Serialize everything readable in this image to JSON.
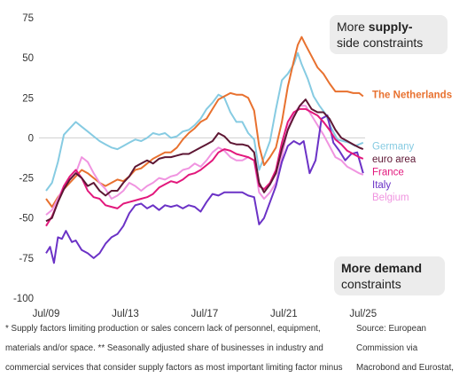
{
  "chart_data": {
    "type": "line",
    "title": "",
    "xlabel": "",
    "ylabel": "",
    "ylim": [
      -100,
      75
    ],
    "yticks": [
      75,
      50,
      25,
      0,
      -25,
      -50,
      -75,
      -100
    ],
    "ytick_labels": [
      "75",
      "50",
      "25",
      "0",
      "-25",
      "-50",
      "-75",
      "-100"
    ],
    "xlim": [
      2009.5,
      2025.6
    ],
    "xticks": [
      2009.5,
      2013.5,
      2017.5,
      2021.5,
      2025.5
    ],
    "xtick_labels": [
      "Jul/09",
      "Jul/13",
      "Jul/17",
      "Jul/21",
      "Jul/25"
    ],
    "grid": false,
    "zero_line": true,
    "series": [
      {
        "name": "Germany",
        "color": "#86cbe2",
        "x": [
          2009.5,
          2009.8,
          2010.1,
          2010.4,
          2010.7,
          2011.0,
          2011.3,
          2011.6,
          2011.9,
          2012.2,
          2012.5,
          2012.8,
          2013.1,
          2013.4,
          2013.7,
          2014.0,
          2014.3,
          2014.6,
          2014.9,
          2015.2,
          2015.5,
          2015.8,
          2016.1,
          2016.4,
          2016.7,
          2017.0,
          2017.3,
          2017.6,
          2017.9,
          2018.2,
          2018.5,
          2018.8,
          2019.1,
          2019.4,
          2019.7,
          2020.0,
          2020.25,
          2020.5,
          2020.8,
          2021.1,
          2021.4,
          2021.7,
          2022.0,
          2022.2,
          2022.4,
          2022.7,
          2023.0,
          2023.3,
          2023.6,
          2023.9,
          2024.2,
          2024.5,
          2024.8,
          2025.1,
          2025.5
        ],
        "values": [
          -33,
          -28,
          -15,
          2,
          6,
          10,
          7,
          4,
          1,
          -2,
          -4,
          -6,
          -7,
          -5,
          -3,
          -1,
          -2,
          0,
          3,
          2,
          3,
          0,
          1,
          4,
          5,
          8,
          12,
          18,
          22,
          27,
          25,
          16,
          10,
          10,
          3,
          -1,
          -20,
          -12,
          -2,
          18,
          36,
          40,
          46,
          53,
          46,
          37,
          26,
          20,
          15,
          6,
          -1,
          -2,
          -3,
          -5,
          -3
        ]
      },
      {
        "name": "The Netherlands",
        "color": "#e8712f",
        "x": [
          2009.5,
          2009.8,
          2010.1,
          2010.4,
          2010.7,
          2011.0,
          2011.3,
          2011.6,
          2011.9,
          2012.2,
          2012.5,
          2012.8,
          2013.1,
          2013.4,
          2013.7,
          2014.0,
          2014.3,
          2014.6,
          2014.9,
          2015.2,
          2015.5,
          2015.8,
          2016.1,
          2016.4,
          2016.7,
          2017.0,
          2017.3,
          2017.6,
          2017.9,
          2018.2,
          2018.5,
          2018.8,
          2019.1,
          2019.4,
          2019.7,
          2020.0,
          2020.25,
          2020.5,
          2020.8,
          2021.1,
          2021.4,
          2021.7,
          2022.0,
          2022.2,
          2022.4,
          2022.6,
          2022.9,
          2023.2,
          2023.5,
          2023.8,
          2024.1,
          2024.4,
          2024.7,
          2025.0,
          2025.3,
          2025.5
        ],
        "values": [
          -38,
          -43,
          -37,
          -32,
          -28,
          -24,
          -20,
          -22,
          -25,
          -28,
          -30,
          -28,
          -26,
          -27,
          -24,
          -20,
          -19,
          -16,
          -13,
          -11,
          -9,
          -9,
          -6,
          -1,
          3,
          6,
          10,
          12,
          18,
          24,
          26,
          28,
          27,
          27,
          25,
          17,
          -5,
          -17,
          -12,
          -6,
          10,
          32,
          48,
          58,
          63,
          58,
          51,
          44,
          40,
          34,
          29,
          29,
          29,
          28,
          28,
          26
        ]
      },
      {
        "name": "euro area",
        "color": "#5e1734",
        "x": [
          2009.5,
          2009.8,
          2010.1,
          2010.4,
          2010.7,
          2011.0,
          2011.3,
          2011.6,
          2011.9,
          2012.2,
          2012.5,
          2012.8,
          2013.1,
          2013.4,
          2013.7,
          2014.0,
          2014.3,
          2014.6,
          2014.9,
          2015.2,
          2015.5,
          2015.8,
          2016.1,
          2016.4,
          2016.7,
          2017.0,
          2017.3,
          2017.6,
          2017.9,
          2018.2,
          2018.5,
          2018.8,
          2019.1,
          2019.4,
          2019.7,
          2020.0,
          2020.25,
          2020.5,
          2020.8,
          2021.1,
          2021.4,
          2021.7,
          2022.0,
          2022.3,
          2022.6,
          2022.9,
          2023.2,
          2023.5,
          2023.8,
          2024.1,
          2024.4,
          2024.7,
          2025.0,
          2025.3,
          2025.5
        ],
        "values": [
          -52,
          -50,
          -40,
          -32,
          -26,
          -22,
          -25,
          -30,
          -28,
          -33,
          -36,
          -33,
          -33,
          -28,
          -24,
          -18,
          -16,
          -14,
          -16,
          -13,
          -12,
          -12,
          -11,
          -10,
          -10,
          -8,
          -6,
          -4,
          -2,
          3,
          1,
          -3,
          -4,
          -4,
          -5,
          -9,
          -28,
          -34,
          -29,
          -22,
          -7,
          5,
          13,
          20,
          24,
          18,
          16,
          16,
          12,
          5,
          0,
          -2,
          -4,
          -6,
          -7
        ]
      },
      {
        "name": "France",
        "color": "#e2187c",
        "x": [
          2009.5,
          2009.8,
          2010.1,
          2010.4,
          2010.7,
          2011.0,
          2011.3,
          2011.6,
          2011.9,
          2012.2,
          2012.5,
          2012.8,
          2013.1,
          2013.4,
          2013.7,
          2014.0,
          2014.3,
          2014.6,
          2014.9,
          2015.2,
          2015.5,
          2015.8,
          2016.1,
          2016.4,
          2016.7,
          2017.0,
          2017.3,
          2017.6,
          2017.9,
          2018.2,
          2018.5,
          2018.8,
          2019.1,
          2019.4,
          2019.7,
          2020.0,
          2020.25,
          2020.5,
          2020.8,
          2021.1,
          2021.4,
          2021.7,
          2022.0,
          2022.3,
          2022.6,
          2022.9,
          2023.2,
          2023.5,
          2023.8,
          2024.1,
          2024.4,
          2024.7,
          2025.0,
          2025.3,
          2025.5
        ],
        "values": [
          -55,
          -49,
          -40,
          -30,
          -24,
          -20,
          -25,
          -33,
          -37,
          -38,
          -42,
          -43,
          -44,
          -41,
          -40,
          -39,
          -38,
          -37,
          -35,
          -31,
          -29,
          -27,
          -28,
          -26,
          -23,
          -22,
          -20,
          -17,
          -14,
          -9,
          -7,
          -8,
          -10,
          -11,
          -12,
          -14,
          -30,
          -32,
          -28,
          -20,
          -3,
          10,
          16,
          18,
          18,
          16,
          14,
          10,
          5,
          -1,
          -4,
          -8,
          -10,
          -12,
          -13
        ]
      },
      {
        "name": "Italy",
        "color": "#6b32c6",
        "x": [
          2009.5,
          2009.7,
          2009.9,
          2010.1,
          2010.3,
          2010.5,
          2010.8,
          2011.0,
          2011.3,
          2011.6,
          2011.9,
          2012.2,
          2012.5,
          2012.8,
          2013.1,
          2013.4,
          2013.7,
          2014.0,
          2014.3,
          2014.6,
          2014.9,
          2015.2,
          2015.5,
          2015.8,
          2016.1,
          2016.4,
          2016.7,
          2017.0,
          2017.3,
          2017.6,
          2017.9,
          2018.2,
          2018.5,
          2018.8,
          2019.1,
          2019.4,
          2019.7,
          2020.0,
          2020.25,
          2020.5,
          2020.8,
          2021.1,
          2021.4,
          2021.7,
          2022.0,
          2022.3,
          2022.5,
          2022.8,
          2023.1,
          2023.4,
          2023.7,
          2024.0,
          2024.3,
          2024.6,
          2024.9,
          2025.2,
          2025.5
        ],
        "values": [
          -72,
          -68,
          -78,
          -62,
          -63,
          -58,
          -65,
          -64,
          -70,
          -72,
          -75,
          -72,
          -66,
          -62,
          -60,
          -55,
          -47,
          -42,
          -41,
          -44,
          -42,
          -45,
          -42,
          -43,
          -42,
          -44,
          -42,
          -43,
          -46,
          -40,
          -35,
          -36,
          -34,
          -34,
          -34,
          -34,
          -36,
          -37,
          -54,
          -50,
          -40,
          -30,
          -15,
          -5,
          -2,
          -4,
          -2,
          -22,
          -14,
          12,
          14,
          -3,
          -8,
          -14,
          -10,
          -9,
          -22
        ]
      },
      {
        "name": "Belgium",
        "color": "#f094e0",
        "x": [
          2009.5,
          2009.8,
          2010.1,
          2010.4,
          2010.7,
          2011.0,
          2011.3,
          2011.6,
          2011.9,
          2012.2,
          2012.5,
          2012.8,
          2013.1,
          2013.4,
          2013.7,
          2014.0,
          2014.3,
          2014.6,
          2014.9,
          2015.2,
          2015.5,
          2015.8,
          2016.1,
          2016.4,
          2016.7,
          2017.0,
          2017.3,
          2017.6,
          2017.9,
          2018.2,
          2018.5,
          2018.8,
          2019.1,
          2019.4,
          2019.7,
          2020.0,
          2020.25,
          2020.5,
          2020.8,
          2021.1,
          2021.4,
          2021.7,
          2022.0,
          2022.3,
          2022.6,
          2022.9,
          2023.2,
          2023.5,
          2023.8,
          2024.1,
          2024.4,
          2024.7,
          2025.0,
          2025.3,
          2025.5
        ],
        "values": [
          -48,
          -45,
          -38,
          -30,
          -26,
          -22,
          -12,
          -15,
          -22,
          -28,
          -32,
          -38,
          -36,
          -33,
          -28,
          -30,
          -33,
          -30,
          -28,
          -25,
          -26,
          -24,
          -23,
          -20,
          -19,
          -16,
          -18,
          -14,
          -9,
          -6,
          -8,
          -12,
          -14,
          -14,
          -12,
          -14,
          -34,
          -38,
          -34,
          -28,
          -12,
          6,
          15,
          20,
          20,
          14,
          8,
          2,
          -5,
          -12,
          -14,
          -18,
          -20,
          -22,
          -23
        ]
      }
    ],
    "series_label_y": {
      "The Netherlands": 27,
      "Germany": -5,
      "euro area": -13,
      "France": -21,
      "Italy": -29,
      "Belgium": -37
    },
    "annotations": {
      "supply": {
        "plain": "More ",
        "bold": "supply-",
        "line2": "side constraints"
      },
      "demand": {
        "bold_line1": "More demand",
        "line2": "constraints"
      }
    }
  },
  "footnote": {
    "left_lines": [
      "* Supply factors limiting production or sales concern lack of personnel, equipment,",
      "materials and/or space. ** Seasonally adjusted share of businesses in industry and",
      "commercial services that consider supply factors as most important limiting factor minus"
    ],
    "right_lines": [
      "Source: European",
      "Commission via",
      "Macrobond and Eurostat,"
    ]
  }
}
